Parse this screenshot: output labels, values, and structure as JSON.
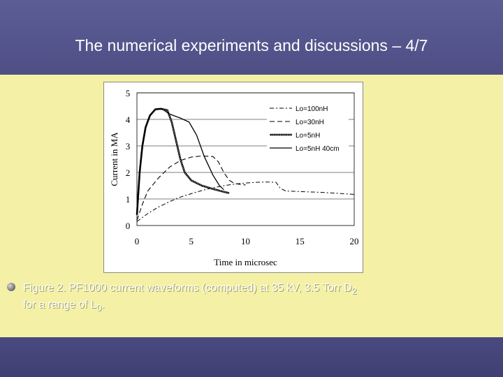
{
  "slide": {
    "title": "The numerical experiments and discussions – 4/7",
    "caption": {
      "line1_main": "Figure 2. PF1000 current waveforms (computed) at 35 kV, 3.5 Torr D",
      "line1_sub": "2",
      "line2_main": "for a range of L",
      "line2_sub": "0",
      "line2_end": "."
    },
    "colors": {
      "header": "#5d5d96",
      "content_bg": "#f4f1a6",
      "footer": "#4a4a80",
      "text": "#ffffff"
    }
  },
  "chart_data": {
    "type": "line",
    "title": "",
    "xlabel": "Time in microsec",
    "ylabel": "Current in MA",
    "xlim": [
      0,
      20
    ],
    "ylim": [
      0,
      5
    ],
    "xticks": [
      0,
      5,
      10,
      15,
      20
    ],
    "yticks": [
      0,
      1,
      2,
      3,
      4,
      5
    ],
    "grid": "horizontal",
    "legend_position": "top-right",
    "series": [
      {
        "name": "Lo=100nH",
        "dash": "dashdot",
        "color": "#000000",
        "points": [
          [
            0,
            0.15
          ],
          [
            1,
            0.45
          ],
          [
            2,
            0.7
          ],
          [
            3,
            0.9
          ],
          [
            4,
            1.07
          ],
          [
            5,
            1.2
          ],
          [
            6,
            1.32
          ],
          [
            7,
            1.42
          ],
          [
            8,
            1.5
          ],
          [
            9,
            1.56
          ],
          [
            10,
            1.6
          ],
          [
            11,
            1.63
          ],
          [
            12,
            1.64
          ],
          [
            12.8,
            1.63
          ],
          [
            13.2,
            1.4
          ],
          [
            13.7,
            1.3
          ],
          [
            15,
            1.28
          ],
          [
            17,
            1.25
          ],
          [
            19,
            1.2
          ],
          [
            20,
            1.17
          ]
        ]
      },
      {
        "name": "Lo=30nH",
        "dash": "dashed",
        "color": "#000000",
        "points": [
          [
            0,
            0.2
          ],
          [
            0.5,
            0.8
          ],
          [
            1,
            1.3
          ],
          [
            2,
            1.8
          ],
          [
            3,
            2.2
          ],
          [
            4,
            2.45
          ],
          [
            5,
            2.58
          ],
          [
            6,
            2.62
          ],
          [
            7,
            2.6
          ],
          [
            7.5,
            2.4
          ],
          [
            8,
            2.0
          ],
          [
            8.5,
            1.7
          ],
          [
            9,
            1.58
          ],
          [
            10,
            1.53
          ]
        ]
      },
      {
        "name": "Lo=5nH",
        "dash": "solid-thick",
        "color": "#000000",
        "points": [
          [
            0,
            0.4
          ],
          [
            0.25,
            2.0
          ],
          [
            0.5,
            3.0
          ],
          [
            0.8,
            3.7
          ],
          [
            1.2,
            4.15
          ],
          [
            1.7,
            4.38
          ],
          [
            2.2,
            4.4
          ],
          [
            2.8,
            4.35
          ],
          [
            3.2,
            3.9
          ],
          [
            3.6,
            3.2
          ],
          [
            4,
            2.5
          ],
          [
            4.4,
            2.0
          ],
          [
            5,
            1.7
          ],
          [
            6,
            1.5
          ],
          [
            7,
            1.38
          ],
          [
            8,
            1.27
          ],
          [
            8.5,
            1.22
          ]
        ]
      },
      {
        "name": "Lo=5nH 40cm",
        "dash": "solid",
        "color": "#000000",
        "points": [
          [
            0,
            0.4
          ],
          [
            0.25,
            2.0
          ],
          [
            0.5,
            3.0
          ],
          [
            0.8,
            3.7
          ],
          [
            1.2,
            4.15
          ],
          [
            1.7,
            4.38
          ],
          [
            2.3,
            4.4
          ],
          [
            3,
            4.2
          ],
          [
            4,
            4.05
          ],
          [
            4.8,
            3.9
          ],
          [
            5.5,
            3.4
          ],
          [
            6.2,
            2.6
          ],
          [
            7,
            1.9
          ],
          [
            7.6,
            1.5
          ],
          [
            8,
            1.35
          ]
        ]
      }
    ]
  }
}
